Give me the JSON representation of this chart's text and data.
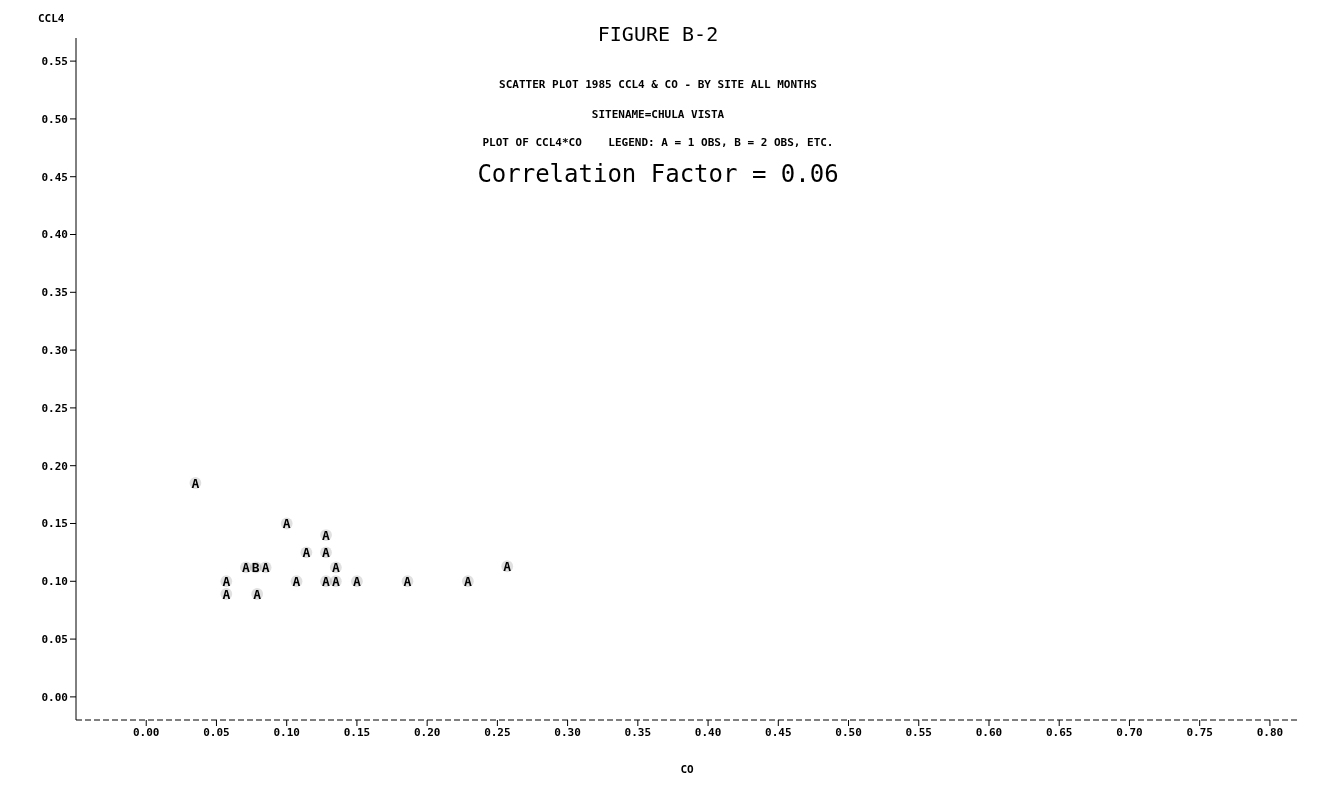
{
  "chart_data": {
    "type": "scatter",
    "title": "FIGURE B-2",
    "subtitle": "SCATTER PLOT 1985 CCL4 & CO - BY SITE  ALL MONTHS",
    "annotations": [
      "SITENAME=CHULA VISTA",
      "PLOT OF CCL4*CO    LEGEND: A = 1 OBS, B = 2 OBS, ETC.",
      "Correlation Factor = 0.06"
    ],
    "xlabel": "CO",
    "ylabel": "CCL4",
    "marker": "circle",
    "grid": false,
    "legend": false,
    "series": [
      {
        "color": "#000000",
        "x": [
          0.035,
          0.1,
          0.128,
          0.114,
          0.128,
          0.071,
          0.078,
          0.085,
          0.135,
          0.257,
          0.057,
          0.107,
          0.128,
          0.135,
          0.15,
          0.186,
          0.229,
          0.057,
          0.079
        ],
        "values": [
          0.185,
          0.15,
          0.14,
          0.125,
          0.125,
          0.112,
          0.112,
          0.112,
          0.112,
          0.113,
          0.1,
          0.1,
          0.1,
          0.1,
          0.1,
          0.1,
          0.1,
          0.089,
          0.089
        ],
        "value_labels": [
          "A",
          "A",
          "A",
          "A",
          "A",
          "A",
          "B",
          "A",
          "A",
          "A",
          "A",
          "A",
          "A",
          "A",
          "A",
          "A",
          "A",
          "A",
          "A"
        ]
      }
    ],
    "xlim": [
      -0.05,
      0.82
    ],
    "xticks": [
      {
        "value": 0,
        "label": "0.00"
      },
      {
        "value": 0.05,
        "label": "0.05"
      },
      {
        "value": 0.1,
        "label": "0.10"
      },
      {
        "value": 0.15,
        "label": "0.15"
      },
      {
        "value": 0.2,
        "label": "0.20"
      },
      {
        "value": 0.25,
        "label": "0.25"
      },
      {
        "value": 0.3,
        "label": "0.30"
      },
      {
        "value": 0.35,
        "label": "0.35"
      },
      {
        "value": 0.4,
        "label": "0.40"
      },
      {
        "value": 0.45,
        "label": "0.45"
      },
      {
        "value": 0.5,
        "label": "0.50"
      },
      {
        "value": 0.55,
        "label": "0.55"
      },
      {
        "value": 0.6,
        "label": "0.60"
      },
      {
        "value": 0.65,
        "label": "0.65"
      },
      {
        "value": 0.7,
        "label": "0.70"
      },
      {
        "value": 0.75,
        "label": "0.75"
      },
      {
        "value": 0.8,
        "label": "0.80"
      }
    ],
    "ylim": [
      -0.02,
      0.57
    ],
    "yticks": [
      {
        "value": 0,
        "label": "0.00"
      },
      {
        "value": 0.05,
        "label": "0.05"
      },
      {
        "value": 0.1,
        "label": "0.10"
      },
      {
        "value": 0.15,
        "label": "0.15"
      },
      {
        "value": 0.2,
        "label": "0.20"
      },
      {
        "value": 0.25,
        "label": "0.25"
      },
      {
        "value": 0.3,
        "label": "0.30"
      },
      {
        "value": 0.35,
        "label": "0.35"
      },
      {
        "value": 0.4,
        "label": "0.40"
      },
      {
        "value": 0.45,
        "label": "0.45"
      },
      {
        "value": 0.5,
        "label": "0.50"
      },
      {
        "value": 0.55,
        "label": "0.55"
      }
    ]
  }
}
